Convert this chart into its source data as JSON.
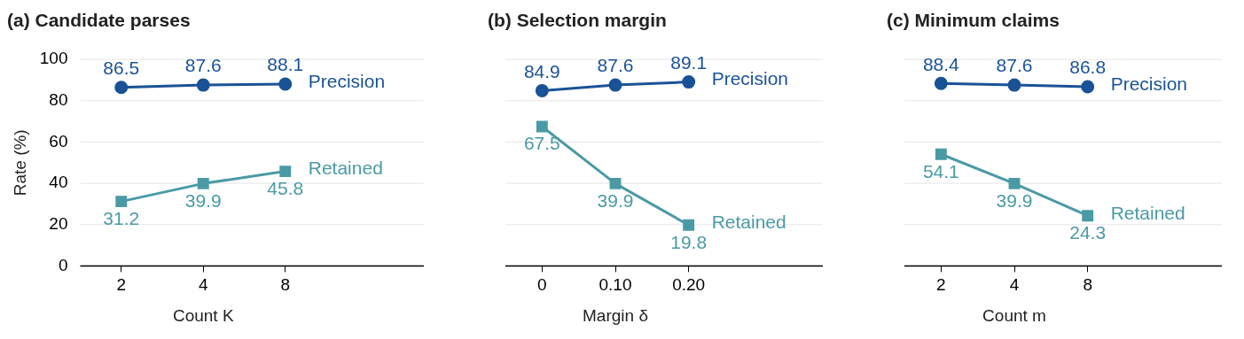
{
  "chart_data": [
    {
      "type": "line",
      "title": "(a) Candidate parses",
      "xlabel": "Count K",
      "ylabel": "Rate (%)",
      "categories": [
        "2",
        "4",
        "8"
      ],
      "ylim": [
        0,
        100
      ],
      "yticks": [
        0,
        20,
        40,
        60,
        80,
        100
      ],
      "grid": "y",
      "legend": false,
      "data_labels": true,
      "series": [
        {
          "name": "Precision",
          "color": "#1a5296",
          "marker": "circle",
          "values": [
            86.5,
            87.6,
            88.1
          ]
        },
        {
          "name": "Retained",
          "color": "#4a9aa5",
          "marker": "square",
          "values": [
            31.2,
            39.9,
            45.8
          ]
        }
      ]
    },
    {
      "type": "line",
      "title": "(b) Selection margin",
      "xlabel": "Margin δ",
      "categories": [
        "0",
        "0.10",
        "0.20"
      ],
      "ylim": [
        0,
        100
      ],
      "yticks": [
        0,
        20,
        40,
        60,
        80,
        100
      ],
      "grid": "y",
      "legend": false,
      "data_labels": true,
      "tick_labels": "x",
      "series": [
        {
          "name": "Precision",
          "color": "#1a5296",
          "marker": "circle",
          "values": [
            84.9,
            87.6,
            89.1
          ]
        },
        {
          "name": "Retained",
          "color": "#4a9aa5",
          "marker": "square",
          "values": [
            67.5,
            39.9,
            19.8
          ]
        }
      ]
    },
    {
      "type": "line",
      "title": "(c) Minimum claims",
      "xlabel": "Count m",
      "categories": [
        "2",
        "4",
        "8"
      ],
      "ylim": [
        0,
        100
      ],
      "yticks": [
        0,
        20,
        40,
        60,
        80,
        100
      ],
      "grid": "y",
      "legend": false,
      "data_labels": true,
      "tick_labels": "x",
      "series": [
        {
          "name": "Precision",
          "color": "#1a5296",
          "marker": "circle",
          "values": [
            88.4,
            87.6,
            86.8
          ]
        },
        {
          "name": "Retained",
          "color": "#4a9aa5",
          "marker": "square",
          "values": [
            54.1,
            39.9,
            24.3
          ]
        }
      ]
    }
  ]
}
